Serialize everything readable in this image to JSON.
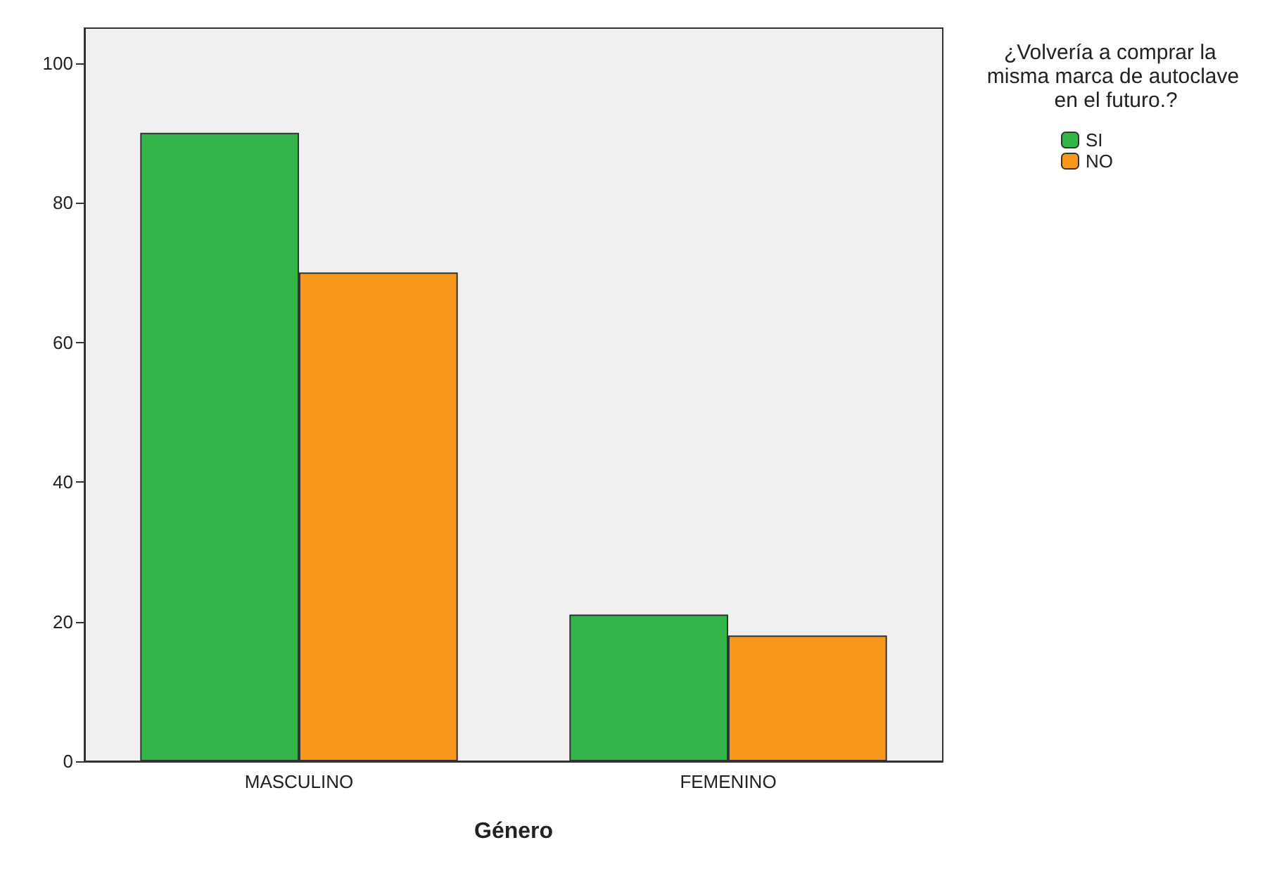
{
  "chart_data": {
    "type": "bar",
    "xlabel": "Género",
    "legend_title": "¿Volvería a comprar la misma marca de autoclave en el futuro.?",
    "categories": [
      "MASCULINO",
      "FEMENINO"
    ],
    "series": [
      {
        "name": "SI",
        "color": "#33b54a",
        "values": [
          90,
          21
        ]
      },
      {
        "name": "NO",
        "color": "#f7981d",
        "values": [
          70,
          18
        ]
      }
    ],
    "ylim": [
      0,
      105
    ],
    "yticks": [
      0,
      20,
      40,
      60,
      80,
      100
    ],
    "grid": false,
    "legend": "top right"
  }
}
